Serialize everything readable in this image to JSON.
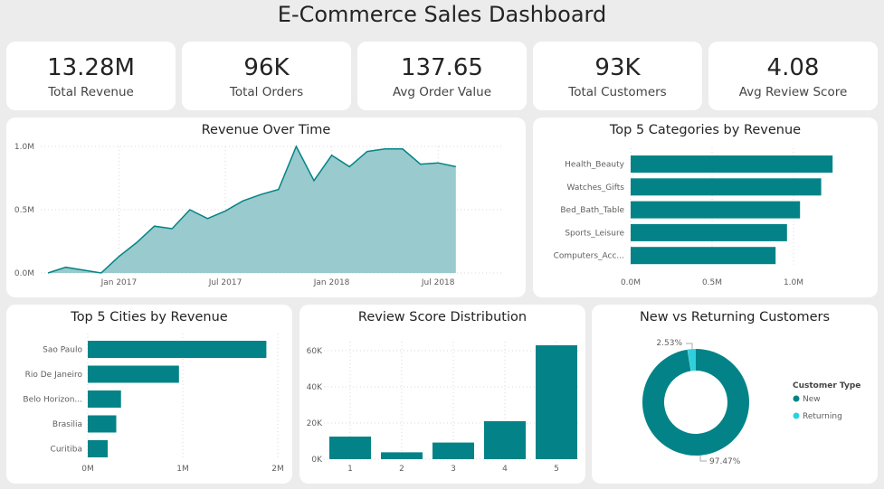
{
  "title": "E-Commerce Sales Dashboard",
  "kpis": [
    {
      "value": "13.28M",
      "label": "Total Revenue"
    },
    {
      "value": "96K",
      "label": "Total Orders"
    },
    {
      "value": "137.65",
      "label": "Avg Order Value"
    },
    {
      "value": "93K",
      "label": "Total Customers"
    },
    {
      "value": "4.08",
      "label": "Avg Review Score"
    }
  ],
  "colors": {
    "primary": "#038387",
    "area_fill": "#99cacd",
    "returning": "#2fd0de"
  },
  "chart_data": [
    {
      "type": "area",
      "title": "Revenue Over Time",
      "x": [
        "2016-09",
        "2016-10",
        "2016-12",
        "2017-01",
        "2017-02",
        "2017-03",
        "2017-04",
        "2017-05",
        "2017-06",
        "2017-07",
        "2017-08",
        "2017-09",
        "2017-10",
        "2017-11",
        "2017-12",
        "2018-01",
        "2018-02",
        "2018-03",
        "2018-04",
        "2018-05",
        "2018-06",
        "2018-07",
        "2018-08"
      ],
      "values": [
        0,
        0.045,
        0,
        0.13,
        0.24,
        0.37,
        0.35,
        0.5,
        0.43,
        0.49,
        0.57,
        0.62,
        0.66,
        1.0,
        0.73,
        0.93,
        0.84,
        0.96,
        0.98,
        0.98,
        0.86,
        0.87,
        0.84
      ],
      "unit": "M",
      "ylim": [
        0,
        1.0
      ],
      "yticks": [
        "0.0M",
        "0.5M",
        "1.0M"
      ],
      "xticks": [
        "Jan 2017",
        "Jul 2017",
        "Jan 2018",
        "Jul 2018"
      ],
      "grid": true
    },
    {
      "type": "bar",
      "orientation": "horizontal",
      "title": "Top 5 Categories by Revenue",
      "categories": [
        "Health_Beauty",
        "Watches_Gifts",
        "Bed_Bath_Table",
        "Sports_Leisure",
        "Computers_Acc..."
      ],
      "values": [
        1.24,
        1.17,
        1.04,
        0.96,
        0.89
      ],
      "unit": "M",
      "xlim": [
        0,
        1.4
      ],
      "xticks": [
        "0.0M",
        "0.5M",
        "1.0M"
      ],
      "grid": true
    },
    {
      "type": "bar",
      "orientation": "horizontal",
      "title": "Top 5 Cities by Revenue",
      "categories": [
        "Sao Paulo",
        "Rio De Janeiro",
        "Belo Horizon...",
        "Brasilia",
        "Curitiba"
      ],
      "values": [
        1.88,
        0.96,
        0.35,
        0.3,
        0.21
      ],
      "unit": "M",
      "xlim": [
        0,
        2.1
      ],
      "xticks": [
        "0M",
        "1M",
        "2M"
      ],
      "grid": true
    },
    {
      "type": "bar",
      "title": "Review Score Distribution",
      "categories": [
        "1",
        "2",
        "3",
        "4",
        "5"
      ],
      "values": [
        12.5,
        3.8,
        9.2,
        21,
        63
      ],
      "unit": "K",
      "ylim": [
        0,
        70
      ],
      "yticks": [
        "0K",
        "20K",
        "40K",
        "60K"
      ],
      "grid": true
    },
    {
      "type": "pie",
      "donut": true,
      "title": "New vs Returning Customers",
      "legend_title": "Customer Type",
      "legend": "right",
      "slices": [
        {
          "name": "New",
          "value": 97.47,
          "label": "97.47%"
        },
        {
          "name": "Returning",
          "value": 2.53,
          "label": "2.53%"
        }
      ]
    }
  ]
}
